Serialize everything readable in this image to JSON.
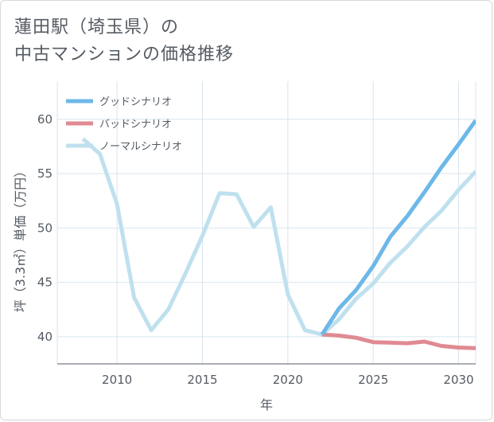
{
  "title": {
    "line1": "蓮田駅（埼玉県）の",
    "line2": "中古マンションの価格推移"
  },
  "chart_data": {
    "type": "line",
    "xlabel": "年",
    "ylabel": "坪（3.3㎡）単価（万円）",
    "xlim": [
      2006.5,
      2031
    ],
    "ylim": [
      37.5,
      63.5
    ],
    "xticks": [
      2010,
      2015,
      2020,
      2025,
      2030
    ],
    "yticks": [
      40,
      45,
      50,
      55,
      60
    ],
    "grid": true,
    "legend_position": "top-left",
    "colors": {
      "good": "#6cb8e8",
      "bad": "#e08a92",
      "normal": "#bfe0ee",
      "grid": "#d8e6ee",
      "axis": "#555b63"
    },
    "series": [
      {
        "key": "good",
        "name": "グッドシナリオ",
        "x": [
          2022,
          2023,
          2024,
          2025,
          2026,
          2027,
          2028,
          2029,
          2030,
          2031
        ],
        "values": [
          40.2,
          42.6,
          44.3,
          46.5,
          49.2,
          51.1,
          53.3,
          55.6,
          57.7,
          59.9
        ]
      },
      {
        "key": "bad",
        "name": "バッドシナリオ",
        "x": [
          2022,
          2023,
          2024,
          2025,
          2026,
          2027,
          2028,
          2029,
          2030,
          2031
        ],
        "values": [
          40.2,
          40.1,
          39.9,
          39.5,
          39.45,
          39.4,
          39.55,
          39.15,
          39.0,
          38.95
        ]
      },
      {
        "key": "normal",
        "name": "ノーマルシナリオ",
        "x": [
          2008,
          2009,
          2010,
          2011,
          2012,
          2013,
          2014,
          2015,
          2016,
          2017,
          2018,
          2019,
          2020,
          2021,
          2022,
          2023,
          2024,
          2025,
          2026,
          2027,
          2028,
          2029,
          2030,
          2031
        ],
        "values": [
          58.2,
          56.8,
          52.2,
          43.6,
          40.6,
          42.5,
          45.8,
          49.3,
          53.2,
          53.1,
          50.1,
          51.9,
          43.9,
          40.6,
          40.2,
          41.6,
          43.5,
          44.9,
          46.8,
          48.3,
          50.1,
          51.6,
          53.5,
          55.2
        ]
      }
    ]
  }
}
